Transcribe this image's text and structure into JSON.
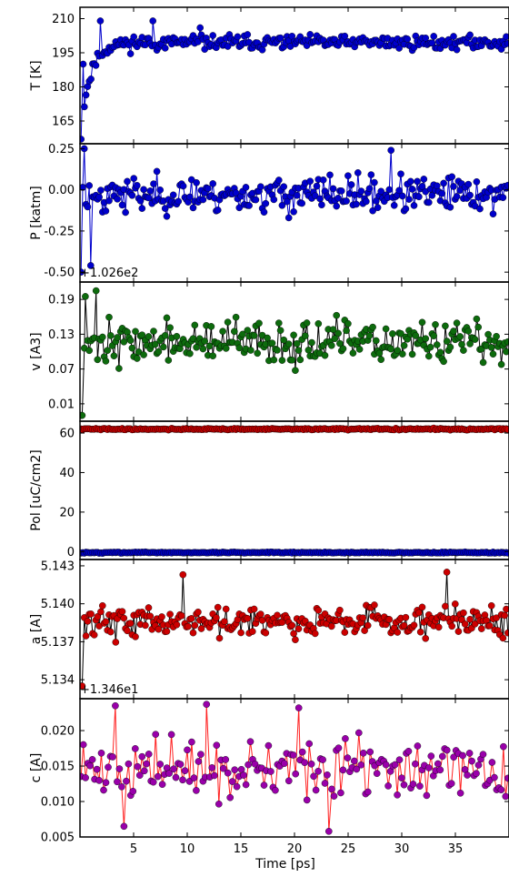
{
  "chart_data": [
    {
      "type": "line",
      "ylabel": "T [K]",
      "xlim": [
        0,
        40
      ],
      "ylim": [
        155,
        215
      ],
      "yticks": [
        "165",
        "180",
        "195",
        "210"
      ],
      "ytick_values": [
        165,
        180,
        195,
        210
      ],
      "offset_text": "",
      "series": [
        {
          "color": "#0000cc",
          "line_color": "#0000cc",
          "gen": {
            "kind": "relax",
            "seed": 11,
            "n": 260,
            "start": 157,
            "end": 199.5,
            "tau": 0.9,
            "noise": 2.2
          }
        }
      ],
      "annotation_points": [
        {
          "x": 0.1,
          "y": 157
        },
        {
          "x": 0.3,
          "y": 190
        },
        {
          "x": 1.9,
          "y": 209
        },
        {
          "x": 6.8,
          "y": 209
        },
        {
          "x": 11.2,
          "y": 206
        },
        {
          "x": 20,
          "y": 200
        }
      ]
    },
    {
      "type": "line",
      "ylabel": "P [katm]",
      "xlim": [
        0,
        40
      ],
      "ylim": [
        -0.56,
        0.28
      ],
      "yticks": [
        "-0.50",
        "-0.25",
        "0.00",
        "0.25"
      ],
      "ytick_values": [
        -0.5,
        -0.25,
        0.0,
        0.25
      ],
      "offset_text": "+1.026e2",
      "series": [
        {
          "color": "#0000cc",
          "line_color": "#0000cc",
          "gen": {
            "kind": "noise",
            "seed": 23,
            "n": 260,
            "mean": -0.03,
            "noise": 0.075,
            "first": -0.5
          }
        }
      ],
      "annotation_points": [
        {
          "x": 0.4,
          "y": 0.25
        },
        {
          "x": 29,
          "y": 0.24
        },
        {
          "x": 1.0,
          "y": -0.46
        }
      ]
    },
    {
      "type": "line",
      "ylabel": "v [A3]",
      "xlim": [
        0,
        40
      ],
      "ylim": [
        -0.02,
        0.22
      ],
      "yticks": [
        "0.01",
        "0.07",
        "0.13",
        "0.19"
      ],
      "ytick_values": [
        0.01,
        0.07,
        0.13,
        0.19
      ],
      "offset_text": "",
      "series": [
        {
          "color": "#0d6b0d",
          "line_color": "#000000",
          "gen": {
            "kind": "noise",
            "seed": 37,
            "n": 260,
            "mean": 0.115,
            "noise": 0.025,
            "first": -0.01
          }
        }
      ],
      "annotation_points": [
        {
          "x": 0.2,
          "y": -0.01
        },
        {
          "x": 1.5,
          "y": 0.205
        },
        {
          "x": 0.5,
          "y": 0.195
        }
      ]
    },
    {
      "type": "line",
      "ylabel": "Pol [uC/cm2]",
      "xlim": [
        0,
        40
      ],
      "ylim": [
        -4,
        66
      ],
      "yticks": [
        "0",
        "20",
        "40",
        "60"
      ],
      "ytick_values": [
        0,
        20,
        40,
        60
      ],
      "offset_text": "",
      "series": [
        {
          "color": "#cc0000",
          "line_color": "#cc0000",
          "gen": {
            "kind": "noise",
            "seed": 41,
            "n": 260,
            "mean": 62,
            "noise": 0.25
          }
        },
        {
          "color": "#0000cc",
          "line_color": "#0000cc",
          "gen": {
            "kind": "noise",
            "seed": 43,
            "n": 260,
            "mean": -0.5,
            "noise": 0.2
          }
        }
      ],
      "annotation_points": []
    },
    {
      "type": "line",
      "ylabel": "a [A]",
      "xlim": [
        0,
        40
      ],
      "ylim": [
        5.1325,
        5.1435
      ],
      "yticks": [
        "5.134",
        "5.137",
        "5.140",
        "5.143"
      ],
      "ytick_values": [
        5.134,
        5.137,
        5.14,
        5.143
      ],
      "offset_text": "+1.346e1",
      "series": [
        {
          "color": "#cc0000",
          "line_color": "#000000",
          "gen": {
            "kind": "noise",
            "seed": 59,
            "n": 260,
            "mean": 5.1387,
            "noise": 0.00085,
            "first": 5.1335
          }
        }
      ],
      "annotation_points": [
        {
          "x": 9.6,
          "y": 5.1423
        },
        {
          "x": 34.2,
          "y": 5.1425
        },
        {
          "x": 0.2,
          "y": 5.1335
        }
      ]
    },
    {
      "type": "line",
      "xlabel": "Time [ps]",
      "ylabel": "c [A]",
      "xlim": [
        0,
        40
      ],
      "ylim": [
        0.005,
        0.0245
      ],
      "yticks": [
        "0.005",
        "0.010",
        "0.015",
        "0.020"
      ],
      "ytick_values": [
        0.005,
        0.01,
        0.015,
        0.02
      ],
      "xticks": [
        "5",
        "10",
        "15",
        "20",
        "25",
        "30",
        "35"
      ],
      "xtick_values": [
        5,
        10,
        15,
        20,
        25,
        30,
        35
      ],
      "offset_text": "",
      "series": [
        {
          "color": "#9900aa",
          "line_color": "#ff2222",
          "gen": {
            "kind": "noise",
            "seed": 71,
            "n": 190,
            "mean": 0.0145,
            "noise": 0.0028
          }
        }
      ],
      "annotation_points": [
        {
          "x": 3.3,
          "y": 0.0235
        },
        {
          "x": 11.8,
          "y": 0.0237
        },
        {
          "x": 23.2,
          "y": 0.0058
        },
        {
          "x": 4.1,
          "y": 0.0065
        },
        {
          "x": 20.4,
          "y": 0.0232
        }
      ]
    }
  ]
}
